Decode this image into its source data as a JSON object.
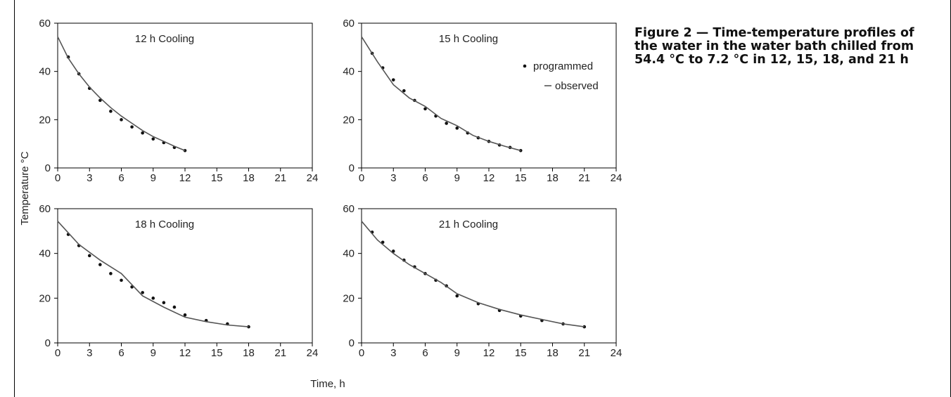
{
  "figure": {
    "caption": "Figure 2 — Time-temperature profiles of the water in the water bath chilled from 54.4 °C to 7.2 °C in 12, 15, 18, and 21 h",
    "ylabel": "Temperature °C",
    "xlabel": "Time, h"
  },
  "legend": {
    "programmed": "programmed",
    "observed": "observed",
    "position": "top-right of 15 h panel"
  },
  "colors": {
    "marker": "#111111",
    "line": "#555555",
    "axis": "#000000"
  },
  "chart_data": [
    {
      "type": "line",
      "title": "12 h Cooling",
      "xlim": [
        0,
        24
      ],
      "ylim": [
        0,
        60
      ],
      "xticks": [
        "0",
        "3",
        "6",
        "9",
        "12",
        "15",
        "18",
        "21",
        "24"
      ],
      "yticks": [
        "0",
        "20",
        "40",
        "60"
      ],
      "grid": false,
      "series": [
        {
          "name": "programmed",
          "style": "markers",
          "x": [
            1,
            2,
            3,
            4,
            5,
            6,
            7,
            8,
            9,
            10,
            11,
            12
          ],
          "y": [
            46,
            39,
            33,
            28,
            23.5,
            20,
            17,
            14.5,
            12,
            10.5,
            8.5,
            7.2
          ]
        },
        {
          "name": "observed",
          "style": "line",
          "x": [
            0,
            1,
            2,
            3,
            4,
            5,
            6,
            7,
            8,
            9,
            10,
            11,
            12
          ],
          "y": [
            54.4,
            45.5,
            39,
            33.5,
            29,
            25,
            21.5,
            18.5,
            15.5,
            13,
            11,
            9,
            7.2
          ]
        }
      ]
    },
    {
      "type": "line",
      "title": "15 h Cooling",
      "xlim": [
        0,
        24
      ],
      "ylim": [
        0,
        60
      ],
      "xticks": [
        "0",
        "3",
        "6",
        "9",
        "12",
        "15",
        "18",
        "21",
        "24"
      ],
      "yticks": [
        "0",
        "20",
        "40",
        "60"
      ],
      "grid": false,
      "series": [
        {
          "name": "programmed",
          "style": "markers",
          "x": [
            1,
            2,
            3,
            4,
            5,
            6,
            7,
            8,
            9,
            10,
            11,
            12,
            13,
            14,
            15
          ],
          "y": [
            47.5,
            41.5,
            36.5,
            32,
            28,
            24.5,
            21.5,
            18.5,
            16.5,
            14.5,
            12.5,
            11,
            9.5,
            8.5,
            7.2
          ]
        },
        {
          "name": "observed",
          "style": "line",
          "x": [
            0,
            1.5,
            3,
            4.5,
            6,
            7.5,
            9,
            10.5,
            12,
            13.5,
            15
          ],
          "y": [
            54.4,
            44,
            34.5,
            29,
            25.5,
            20.5,
            17.5,
            13.5,
            11,
            9,
            7.2
          ]
        }
      ]
    },
    {
      "type": "line",
      "title": "18 h Cooling",
      "xlim": [
        0,
        24
      ],
      "ylim": [
        0,
        60
      ],
      "xticks": [
        "0",
        "3",
        "6",
        "9",
        "12",
        "15",
        "18",
        "21",
        "24"
      ],
      "yticks": [
        "0",
        "20",
        "40",
        "60"
      ],
      "grid": false,
      "series": [
        {
          "name": "programmed",
          "style": "markers",
          "x": [
            1,
            2,
            3,
            4,
            5,
            6,
            7,
            8,
            9,
            10,
            11,
            12,
            14,
            16,
            18
          ],
          "y": [
            48.5,
            43.5,
            39,
            35,
            31,
            28,
            25,
            22.5,
            20,
            18,
            16,
            12.5,
            10,
            8.5,
            7.2
          ]
        },
        {
          "name": "observed",
          "style": "line",
          "x": [
            0,
            2,
            4,
            6,
            7,
            8,
            10,
            12,
            14,
            16,
            18
          ],
          "y": [
            54.4,
            44,
            37,
            31,
            26,
            21,
            16,
            11.5,
            9.5,
            8,
            7.2
          ]
        }
      ]
    },
    {
      "type": "line",
      "title": "21 h Cooling",
      "xlim": [
        0,
        24
      ],
      "ylim": [
        0,
        60
      ],
      "xticks": [
        "0",
        "3",
        "6",
        "9",
        "12",
        "15",
        "18",
        "21",
        "24"
      ],
      "yticks": [
        "0",
        "20",
        "40",
        "60"
      ],
      "grid": false,
      "series": [
        {
          "name": "programmed",
          "style": "markers",
          "x": [
            1,
            2,
            3,
            4,
            5,
            6,
            7,
            8,
            9,
            11,
            13,
            15,
            17,
            19,
            21
          ],
          "y": [
            49.5,
            45,
            41,
            37,
            34,
            31,
            28,
            25.5,
            21,
            17.5,
            14.5,
            12,
            10,
            8.5,
            7.2
          ]
        },
        {
          "name": "observed",
          "style": "line",
          "x": [
            0,
            1.5,
            3,
            4.5,
            6,
            7.5,
            9,
            11,
            13,
            15,
            17,
            19,
            21
          ],
          "y": [
            54.4,
            46,
            40,
            35,
            31,
            27,
            22,
            18,
            15,
            12.5,
            10.5,
            8.5,
            7.2
          ]
        }
      ]
    }
  ]
}
